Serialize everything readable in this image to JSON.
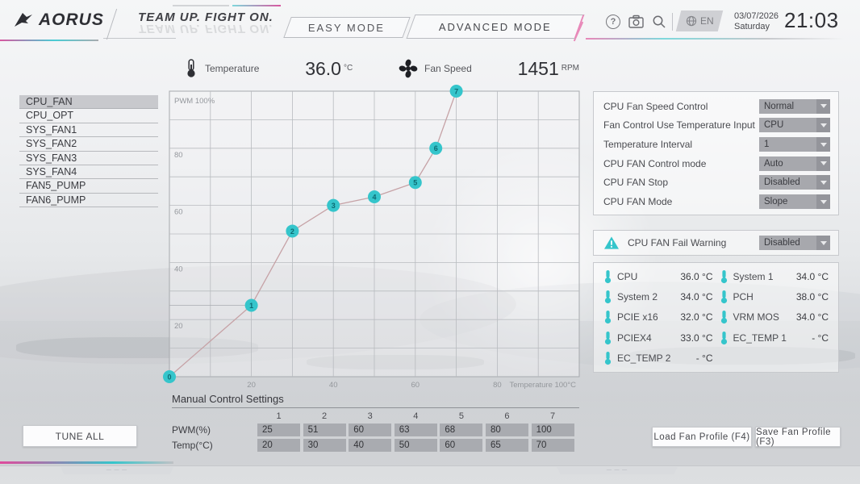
{
  "colors": {
    "accent_teal": "#35c5cb",
    "accent_pink": "#e04a9c",
    "curve_line": "#c6a2a6",
    "dropdown_bg": "#a7a8ad",
    "selected_item_bg": "#c8c9cd"
  },
  "topbar": {
    "logo": "AORUS",
    "slogan": "TEAM UP. FIGHT ON.",
    "tabs": [
      {
        "label": "EASY MODE"
      },
      {
        "label": "ADVANCED MODE",
        "active": true
      }
    ],
    "icons": [
      "help-icon",
      "camera-icon",
      "search-icon",
      "globe-icon"
    ],
    "help_glyph": "?",
    "language": "EN",
    "date": "03/07/2026",
    "day": "Saturday",
    "time": "21:03"
  },
  "status": {
    "temperature_label": "Temperature",
    "temperature_value": "36.0",
    "temperature_unit": "°C",
    "fan_label": "Fan Speed",
    "fan_value": "1451",
    "fan_unit": "RPM"
  },
  "sidebar": {
    "items": [
      {
        "label": "CPU_FAN",
        "selected": true
      },
      {
        "label": "CPU_OPT",
        "selected": false
      },
      {
        "label": "SYS_FAN1",
        "selected": false
      },
      {
        "label": "SYS_FAN2",
        "selected": false
      },
      {
        "label": "SYS_FAN3",
        "selected": false
      },
      {
        "label": "SYS_FAN4",
        "selected": false
      },
      {
        "label": "FAN5_PUMP",
        "selected": false
      },
      {
        "label": "FAN6_PUMP",
        "selected": false
      }
    ]
  },
  "chart_data": {
    "type": "line",
    "title": "CPU fan curve",
    "xlabel": "Temperature 100°C",
    "ylabel": "PWM 100%",
    "x": [
      0,
      20,
      30,
      40,
      50,
      60,
      65,
      70
    ],
    "y": [
      0,
      25,
      51,
      60,
      63,
      68,
      80,
      100
    ],
    "point_labels": [
      "0",
      "1",
      "2",
      "3",
      "4",
      "5",
      "6",
      "7"
    ],
    "xlim": [
      0,
      100
    ],
    "ylim": [
      0,
      100
    ],
    "x_ticks": [
      20,
      40,
      60,
      80
    ],
    "y_ticks": [
      20,
      40,
      60,
      80
    ],
    "grid": true,
    "reference_line_pwm": 25
  },
  "settings": {
    "rows": [
      {
        "label": "CPU Fan Speed Control",
        "value": "Normal"
      },
      {
        "label": "Fan Control Use Temperature Input",
        "value": "CPU"
      },
      {
        "label": "Temperature Interval",
        "value": "1"
      },
      {
        "label": "CPU FAN Control mode",
        "value": "Auto"
      },
      {
        "label": "CPU FAN Stop",
        "value": "Disabled"
      },
      {
        "label": "CPU FAN Mode",
        "value": "Slope"
      }
    ]
  },
  "fail_warning": {
    "label": "CPU FAN Fail Warning",
    "value": "Disabled"
  },
  "temperatures": {
    "items": [
      {
        "label": "CPU",
        "value": "36.0 °C"
      },
      {
        "label": "System 1",
        "value": "34.0 °C"
      },
      {
        "label": "System 2",
        "value": "34.0 °C"
      },
      {
        "label": "PCH",
        "value": "38.0 °C"
      },
      {
        "label": "PCIE x16",
        "value": "32.0 °C"
      },
      {
        "label": "VRM MOS",
        "value": "34.0 °C"
      },
      {
        "label": "PCIEX4",
        "value": "33.0 °C"
      },
      {
        "label": "EC_TEMP 1",
        "value": "- °C"
      },
      {
        "label": "EC_TEMP 2",
        "value": "- °C"
      }
    ]
  },
  "manual": {
    "title": "Manual Control Settings",
    "columns": [
      "1",
      "2",
      "3",
      "4",
      "5",
      "6",
      "7"
    ],
    "rows": [
      {
        "label": "PWM(%)",
        "values": [
          "25",
          "51",
          "60",
          "63",
          "68",
          "80",
          "100"
        ]
      },
      {
        "label": "Temp(°C)",
        "values": [
          "20",
          "30",
          "40",
          "50",
          "60",
          "65",
          "70"
        ]
      }
    ]
  },
  "buttons": {
    "tune_all": "TUNE ALL",
    "load_profile": "Load Fan Profile (F4)",
    "save_profile": "Save Fan Profile (F3)"
  }
}
